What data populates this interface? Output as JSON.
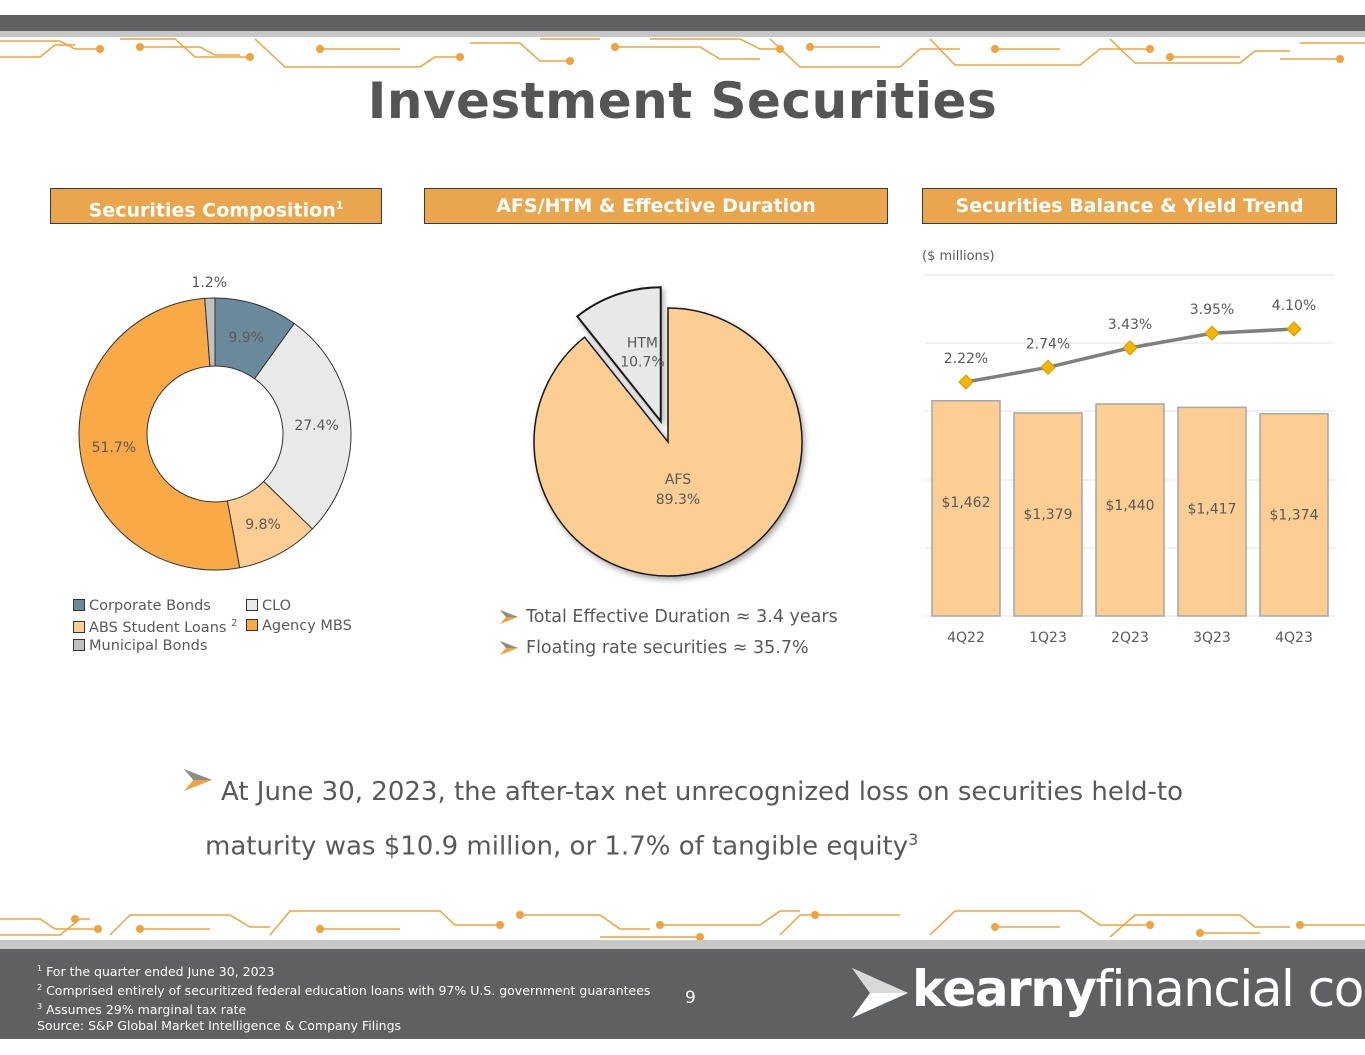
{
  "title": "Investment Securities",
  "panels": {
    "composition": {
      "header": "Securities Composition",
      "header_sup": "1"
    },
    "afs_htm": {
      "header": "AFS/HTM & Effective Duration"
    },
    "balance": {
      "header": "Securities Balance & Yield Trend",
      "units": "($ millions)"
    }
  },
  "colors": {
    "accent": "#eaa64d",
    "gray_bar": "#5f6062",
    "afs": "#fdce94",
    "htm": "#e8e8e8"
  },
  "chart_data": [
    {
      "type": "pie",
      "title": "Securities Composition",
      "donut": true,
      "slices": [
        {
          "name": "Corporate Bonds",
          "value": 9.9,
          "label": "9.9%",
          "color": "#6a8a9b"
        },
        {
          "name": "CLO",
          "value": 27.4,
          "label": "27.4%",
          "color": "#e9e9e9"
        },
        {
          "name": "ABS Student Loans",
          "value": 9.8,
          "label": "9.8%",
          "color": "#fdce94"
        },
        {
          "name": "Agency MBS",
          "value": 51.7,
          "label": "51.7%",
          "color": "#f9a946"
        },
        {
          "name": "Municipal Bonds",
          "value": 1.2,
          "label": "1.2%",
          "color": "#c0c0c0"
        }
      ],
      "legend": [
        {
          "name": "Corporate Bonds",
          "color": "#6a8a9b",
          "sup": ""
        },
        {
          "name": "CLO",
          "color": "#e9e9e9",
          "sup": ""
        },
        {
          "name": "ABS Student Loans",
          "color": "#fdce94",
          "sup": "2"
        },
        {
          "name": "Agency MBS",
          "color": "#f9a946",
          "sup": ""
        },
        {
          "name": "Municipal Bonds",
          "color": "#c0c0c0",
          "sup": ""
        }
      ]
    },
    {
      "type": "pie",
      "title": "AFS/HTM & Effective Duration",
      "slices": [
        {
          "name": "HTM",
          "value": 10.7,
          "label": "10.7%",
          "color": "#e8e8e8",
          "exploded": true
        },
        {
          "name": "AFS",
          "value": 89.3,
          "label": "89.3%",
          "color": "#fdce94"
        }
      ]
    },
    {
      "type": "bar",
      "title": "Securities Balance & Yield Trend",
      "categories": [
        "4Q22",
        "1Q23",
        "2Q23",
        "3Q23",
        "4Q23"
      ],
      "series": [
        {
          "values": [
            1462,
            1379,
            1440,
            1417,
            1374
          ],
          "labels": [
            "$1,462",
            "$1,379",
            "$1,440",
            "$1,417",
            "$1,374"
          ]
        }
      ],
      "line_series": [
        {
          "values": [
            2.22,
            2.74,
            3.43,
            3.95,
            4.1
          ],
          "labels": [
            "2.22%",
            "2.74%",
            "3.43%",
            "3.95%",
            "4.10%"
          ]
        }
      ],
      "ylabel": "($ millions)",
      "grid": true
    }
  ],
  "bullets": [
    {
      "text": "Total Effective Duration ≈ 3.4 years"
    },
    {
      "text": "Floating rate securities ≈ 35.7%"
    }
  ],
  "main_statement": {
    "line1": "At June 30, 2023, the after-tax net unrecognized loss on securities held-to",
    "line2": "maturity was $10.9 million, or 1.7% of tangible equity",
    "sup": "3"
  },
  "footnotes": [
    {
      "sup": "1",
      "text": " For the quarter ended June 30, 2023"
    },
    {
      "sup": "2",
      "text": " Comprised entirely of securitized federal education loans with 97% U.S. government guarantees"
    },
    {
      "sup": "3",
      "text": " Assumes 29% marginal tax rate"
    },
    {
      "sup": "",
      "text": " Source: S&P Global Market Intelligence & Company Filings"
    }
  ],
  "page_number": "9",
  "logo": {
    "bold": "kearny",
    "regular": "financial corp."
  }
}
